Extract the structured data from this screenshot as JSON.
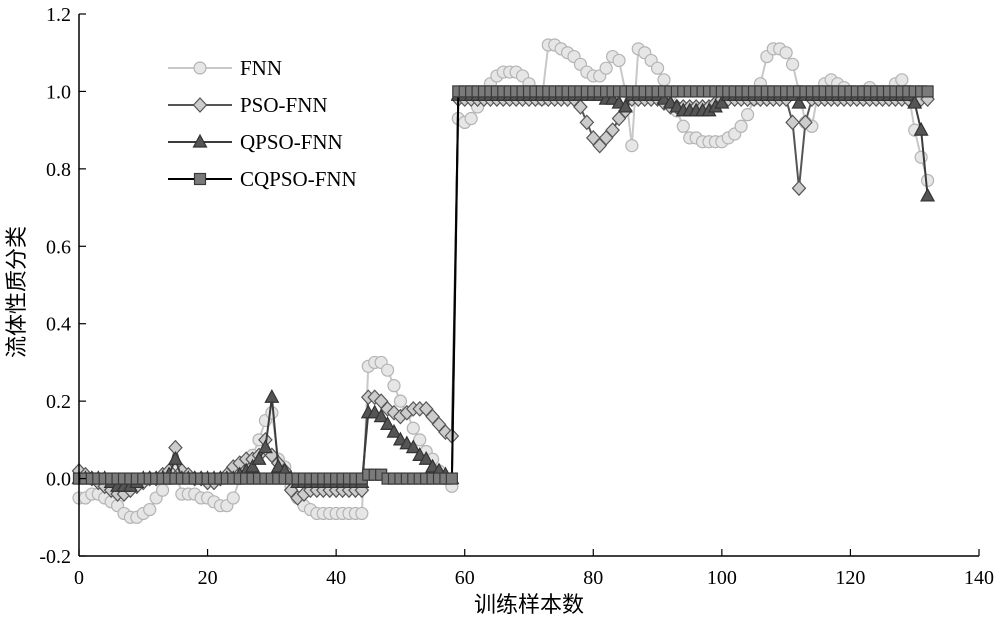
{
  "chart_data": {
    "type": "line",
    "title": "",
    "xlabel": "训练样本数",
    "ylabel": "流体性质分类",
    "xlim": [
      0,
      140
    ],
    "ylim": [
      -0.2,
      1.2
    ],
    "x_ticks": [
      "0",
      "20",
      "40",
      "60",
      "80",
      "100",
      "120",
      "140"
    ],
    "y_ticks": [
      "-0.2",
      "0.0",
      "0.2",
      "0.4",
      "0.6",
      "0.8",
      "1.0",
      "1.2"
    ],
    "grid": false,
    "legend_position": "top-left",
    "series": [
      {
        "name": "FNN",
        "marker": "circle",
        "line_color": "#c8c8c8",
        "marker_fill": "#e6e6e6",
        "marker_stroke": "#b4b4b4",
        "x": [
          0,
          1,
          2,
          3,
          4,
          5,
          6,
          7,
          8,
          9,
          10,
          11,
          12,
          13,
          14,
          15,
          16,
          17,
          18,
          19,
          20,
          21,
          22,
          23,
          24,
          25,
          26,
          27,
          28,
          29,
          30,
          31,
          32,
          33,
          34,
          35,
          36,
          37,
          38,
          39,
          40,
          41,
          42,
          43,
          44,
          45,
          46,
          47,
          48,
          49,
          50,
          51,
          52,
          53,
          54,
          55,
          56,
          57,
          58,
          59,
          60,
          61,
          62,
          63,
          64,
          65,
          66,
          67,
          68,
          69,
          70,
          71,
          72,
          73,
          74,
          75,
          76,
          77,
          78,
          79,
          80,
          81,
          82,
          83,
          84,
          85,
          86,
          87,
          88,
          89,
          90,
          91,
          92,
          93,
          94,
          95,
          96,
          97,
          98,
          99,
          100,
          101,
          102,
          103,
          104,
          105,
          106,
          107,
          108,
          109,
          110,
          111,
          112,
          113,
          114,
          115,
          116,
          117,
          118,
          119,
          120,
          121,
          122,
          123,
          124,
          125,
          126,
          127,
          128,
          129,
          130,
          131,
          132
        ],
        "y": [
          -0.05,
          -0.05,
          -0.04,
          -0.04,
          -0.05,
          -0.06,
          -0.07,
          -0.09,
          -0.1,
          -0.1,
          -0.09,
          -0.08,
          -0.05,
          -0.03,
          0.0,
          0.02,
          -0.04,
          -0.04,
          -0.04,
          -0.05,
          -0.05,
          -0.06,
          -0.07,
          -0.07,
          -0.05,
          0.0,
          0.03,
          0.06,
          0.1,
          0.15,
          0.17,
          0.05,
          0.03,
          -0.02,
          -0.05,
          -0.07,
          -0.08,
          -0.09,
          -0.09,
          -0.09,
          -0.09,
          -0.09,
          -0.09,
          -0.09,
          -0.09,
          0.29,
          0.3,
          0.3,
          0.28,
          0.24,
          0.2,
          0.17,
          0.13,
          0.1,
          0.07,
          0.05,
          0.02,
          0.0,
          -0.02,
          0.93,
          0.92,
          0.93,
          0.96,
          0.99,
          1.02,
          1.04,
          1.05,
          1.05,
          1.05,
          1.04,
          1.02,
          1.0,
          0.98,
          1.12,
          1.12,
          1.11,
          1.1,
          1.09,
          1.07,
          1.05,
          1.04,
          1.04,
          1.06,
          1.09,
          1.08,
          1.0,
          0.86,
          1.11,
          1.1,
          1.08,
          1.06,
          1.03,
          0.99,
          0.95,
          0.91,
          0.88,
          0.88,
          0.87,
          0.87,
          0.87,
          0.87,
          0.88,
          0.89,
          0.91,
          0.94,
          0.98,
          1.02,
          1.09,
          1.11,
          1.11,
          1.1,
          1.07,
          1.0,
          0.92,
          0.91,
          1.0,
          1.02,
          1.03,
          1.02,
          1.01,
          1.0,
          0.99,
          1.0,
          1.01,
          1.0,
          1.0,
          1.0,
          1.02,
          1.03,
          1.0,
          0.9,
          0.83,
          0.77
        ]
      },
      {
        "name": "PSO-FNN",
        "marker": "diamond",
        "line_color": "#555555",
        "marker_fill": "#cccccc",
        "marker_stroke": "#555555",
        "x": [
          0,
          1,
          2,
          3,
          4,
          5,
          6,
          7,
          8,
          9,
          10,
          11,
          12,
          13,
          14,
          15,
          16,
          17,
          18,
          19,
          20,
          21,
          22,
          23,
          24,
          25,
          26,
          27,
          28,
          29,
          30,
          31,
          32,
          33,
          34,
          35,
          36,
          37,
          38,
          39,
          40,
          41,
          42,
          43,
          44,
          45,
          46,
          47,
          48,
          49,
          50,
          51,
          52,
          53,
          54,
          55,
          56,
          57,
          58,
          59,
          60,
          61,
          62,
          63,
          64,
          65,
          66,
          67,
          68,
          69,
          70,
          71,
          72,
          73,
          74,
          75,
          76,
          77,
          78,
          79,
          80,
          81,
          82,
          83,
          84,
          85,
          86,
          87,
          88,
          89,
          90,
          91,
          92,
          93,
          94,
          95,
          96,
          97,
          98,
          99,
          100,
          101,
          102,
          103,
          104,
          105,
          106,
          107,
          108,
          109,
          110,
          111,
          112,
          113,
          114,
          115,
          116,
          117,
          118,
          119,
          120,
          121,
          122,
          123,
          124,
          125,
          126,
          127,
          128,
          129,
          130,
          131,
          132
        ],
        "y": [
          0.02,
          0.01,
          0.0,
          -0.01,
          -0.02,
          -0.03,
          -0.04,
          -0.04,
          -0.03,
          -0.02,
          -0.01,
          0.0,
          0.0,
          0.01,
          0.02,
          0.08,
          0.02,
          0.01,
          0.0,
          0.0,
          -0.01,
          -0.01,
          0.0,
          0.01,
          0.03,
          0.04,
          0.05,
          0.05,
          0.06,
          0.1,
          0.06,
          0.04,
          0.02,
          -0.03,
          -0.05,
          -0.04,
          -0.03,
          -0.03,
          -0.03,
          -0.03,
          -0.03,
          -0.03,
          -0.03,
          -0.03,
          -0.03,
          0.21,
          0.21,
          0.2,
          0.18,
          0.17,
          0.16,
          0.17,
          0.18,
          0.18,
          0.18,
          0.16,
          0.14,
          0.12,
          0.11,
          0.98,
          0.98,
          0.98,
          0.98,
          0.98,
          0.98,
          0.98,
          0.98,
          0.98,
          0.98,
          0.98,
          0.98,
          0.98,
          0.98,
          0.98,
          0.98,
          0.98,
          0.98,
          0.98,
          0.96,
          0.92,
          0.88,
          0.86,
          0.88,
          0.9,
          0.93,
          0.95,
          0.98,
          0.98,
          0.98,
          0.98,
          0.98,
          0.97,
          0.96,
          0.96,
          0.96,
          0.96,
          0.96,
          0.96,
          0.96,
          0.97,
          0.98,
          0.98,
          0.98,
          0.98,
          0.98,
          0.98,
          0.98,
          0.98,
          0.98,
          0.98,
          0.98,
          0.92,
          0.75,
          0.92,
          0.98,
          0.98,
          0.98,
          0.98,
          0.98,
          0.98,
          0.98,
          0.98,
          0.98,
          0.98,
          0.98,
          0.98,
          0.98,
          0.98,
          0.98,
          0.98,
          0.98,
          0.98,
          0.98
        ]
      },
      {
        "name": "QPSO-FNN",
        "marker": "triangle",
        "line_color": "#3c3c3c",
        "marker_fill": "#555555",
        "marker_stroke": "#333333",
        "x": [
          0,
          1,
          2,
          3,
          4,
          5,
          6,
          7,
          8,
          9,
          10,
          11,
          12,
          13,
          14,
          15,
          16,
          17,
          18,
          19,
          20,
          21,
          22,
          23,
          24,
          25,
          26,
          27,
          28,
          29,
          30,
          31,
          32,
          33,
          34,
          35,
          36,
          37,
          38,
          39,
          40,
          41,
          42,
          43,
          44,
          45,
          46,
          47,
          48,
          49,
          50,
          51,
          52,
          53,
          54,
          55,
          56,
          57,
          58,
          59,
          60,
          61,
          62,
          63,
          64,
          65,
          66,
          67,
          68,
          69,
          70,
          71,
          72,
          73,
          74,
          75,
          76,
          77,
          78,
          79,
          80,
          81,
          82,
          83,
          84,
          85,
          86,
          87,
          88,
          89,
          90,
          91,
          92,
          93,
          94,
          95,
          96,
          97,
          98,
          99,
          100,
          101,
          102,
          103,
          104,
          105,
          106,
          107,
          108,
          109,
          110,
          111,
          112,
          113,
          114,
          115,
          116,
          117,
          118,
          119,
          120,
          121,
          122,
          123,
          124,
          125,
          126,
          127,
          128,
          129,
          130,
          131,
          132
        ],
        "y": [
          0.0,
          0.0,
          0.0,
          0.0,
          0.0,
          -0.01,
          -0.02,
          -0.02,
          -0.02,
          -0.01,
          0.0,
          0.0,
          0.0,
          0.0,
          0.01,
          0.05,
          0.0,
          0.0,
          0.0,
          0.0,
          0.0,
          0.0,
          0.0,
          0.0,
          0.0,
          0.01,
          0.02,
          0.03,
          0.05,
          0.08,
          0.21,
          0.03,
          0.02,
          0.0,
          -0.01,
          -0.01,
          -0.01,
          -0.01,
          -0.01,
          -0.01,
          -0.01,
          -0.01,
          -0.01,
          -0.01,
          -0.01,
          0.17,
          0.17,
          0.16,
          0.14,
          0.12,
          0.1,
          0.09,
          0.08,
          0.06,
          0.05,
          0.03,
          0.02,
          0.01,
          0.0,
          0.99,
          0.99,
          0.99,
          0.99,
          0.99,
          0.99,
          0.99,
          0.99,
          0.99,
          0.99,
          0.99,
          0.99,
          0.99,
          0.99,
          0.99,
          0.99,
          0.99,
          0.99,
          0.99,
          0.99,
          0.99,
          0.99,
          0.99,
          0.98,
          0.98,
          0.97,
          0.96,
          0.99,
          0.99,
          0.99,
          0.99,
          0.99,
          0.98,
          0.97,
          0.96,
          0.95,
          0.95,
          0.95,
          0.95,
          0.95,
          0.96,
          0.97,
          0.99,
          0.99,
          0.99,
          0.99,
          0.99,
          0.99,
          0.99,
          0.99,
          0.99,
          0.99,
          0.99,
          0.97,
          0.99,
          0.99,
          0.99,
          0.99,
          0.99,
          0.99,
          0.99,
          0.99,
          0.99,
          0.99,
          0.99,
          0.99,
          0.99,
          0.99,
          0.99,
          0.99,
          0.99,
          0.97,
          0.9,
          0.73
        ]
      },
      {
        "name": "CQPSO-FNN",
        "marker": "square",
        "line_color": "#000000",
        "marker_fill": "#7a7a7a",
        "marker_stroke": "#3a3a3a",
        "x": [
          0,
          1,
          2,
          3,
          4,
          5,
          6,
          7,
          8,
          9,
          10,
          11,
          12,
          13,
          14,
          15,
          16,
          17,
          18,
          19,
          20,
          21,
          22,
          23,
          24,
          25,
          26,
          27,
          28,
          29,
          30,
          31,
          32,
          33,
          34,
          35,
          36,
          37,
          38,
          39,
          40,
          41,
          42,
          43,
          44,
          45,
          46,
          47,
          48,
          49,
          50,
          51,
          52,
          53,
          54,
          55,
          56,
          57,
          58,
          59,
          60,
          61,
          62,
          63,
          64,
          65,
          66,
          67,
          68,
          69,
          70,
          71,
          72,
          73,
          74,
          75,
          76,
          77,
          78,
          79,
          80,
          81,
          82,
          83,
          84,
          85,
          86,
          87,
          88,
          89,
          90,
          91,
          92,
          93,
          94,
          95,
          96,
          97,
          98,
          99,
          100,
          101,
          102,
          103,
          104,
          105,
          106,
          107,
          108,
          109,
          110,
          111,
          112,
          113,
          114,
          115,
          116,
          117,
          118,
          119,
          120,
          121,
          122,
          123,
          124,
          125,
          126,
          127,
          128,
          129,
          130,
          131,
          132
        ],
        "y": [
          0.0,
          0.0,
          0.0,
          0.0,
          0.0,
          0.0,
          0.0,
          0.0,
          0.0,
          0.0,
          0.0,
          0.0,
          0.0,
          0.0,
          0.0,
          0.0,
          0.0,
          0.0,
          0.0,
          0.0,
          0.0,
          0.0,
          0.0,
          0.0,
          0.0,
          0.0,
          0.0,
          0.0,
          0.0,
          0.0,
          0.0,
          0.0,
          0.0,
          0.0,
          0.0,
          0.0,
          0.0,
          0.0,
          0.0,
          0.0,
          0.0,
          0.0,
          0.0,
          0.0,
          0.0,
          0.01,
          0.01,
          0.01,
          0.0,
          0.0,
          0.0,
          0.0,
          0.0,
          0.0,
          0.0,
          0.0,
          0.0,
          0.0,
          0.0,
          1.0,
          1.0,
          1.0,
          1.0,
          1.0,
          1.0,
          1.0,
          1.0,
          1.0,
          1.0,
          1.0,
          1.0,
          1.0,
          1.0,
          1.0,
          1.0,
          1.0,
          1.0,
          1.0,
          1.0,
          1.0,
          1.0,
          1.0,
          1.0,
          1.0,
          1.0,
          1.0,
          1.0,
          1.0,
          1.0,
          1.0,
          1.0,
          1.0,
          1.0,
          1.0,
          1.0,
          1.0,
          1.0,
          1.0,
          1.0,
          1.0,
          1.0,
          1.0,
          1.0,
          1.0,
          1.0,
          1.0,
          1.0,
          1.0,
          1.0,
          1.0,
          1.0,
          1.0,
          1.0,
          1.0,
          1.0,
          1.0,
          1.0,
          1.0,
          1.0,
          1.0,
          1.0,
          1.0,
          1.0,
          1.0,
          1.0,
          1.0,
          1.0,
          1.0,
          1.0,
          1.0,
          1.0,
          1.0,
          1.0
        ]
      }
    ]
  }
}
